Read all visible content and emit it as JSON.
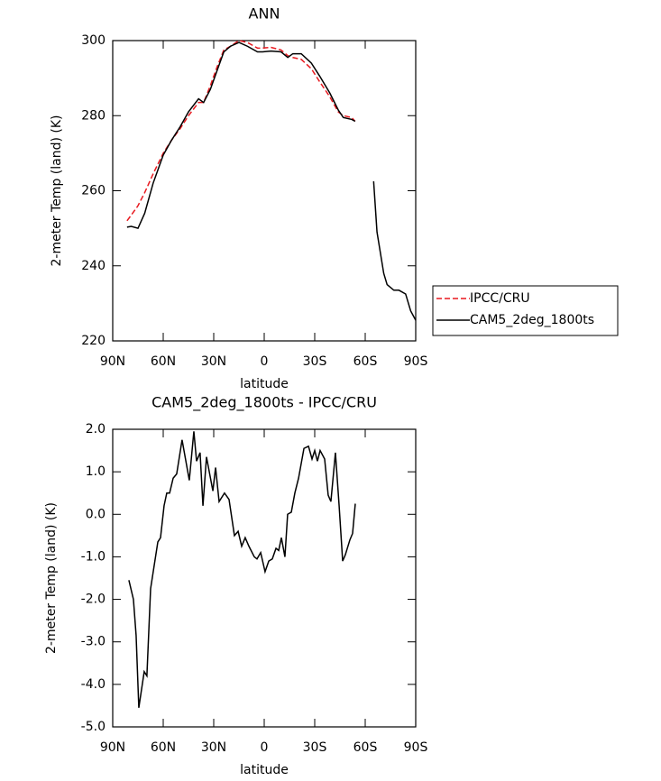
{
  "chart_data": [
    {
      "type": "line",
      "title": "ANN",
      "xlabel": "latitude",
      "ylabel": "2-meter Temp (land) (K)",
      "x": [
        81.5,
        79,
        75,
        71,
        66,
        60,
        55,
        50,
        45,
        39,
        36,
        32,
        28,
        24,
        20,
        15,
        10,
        4,
        1,
        -4,
        -10,
        -14,
        -17,
        -22,
        -28,
        -33,
        -39,
        -44,
        -47,
        -52,
        -54,
        -60,
        -65,
        -67,
        -71,
        -73,
        -77,
        -80,
        -84,
        -87,
        -90
      ],
      "series": [
        {
          "name": "IPCC/CRU",
          "color": "#e8191f",
          "dashed": true,
          "values": [
            252,
            253.5,
            256,
            259.5,
            264.5,
            270,
            273.5,
            276.5,
            280,
            283.5,
            283.5,
            288,
            293,
            297.5,
            298.5,
            300,
            299.5,
            298,
            298,
            298.2,
            297.5,
            296,
            295.5,
            295,
            292.5,
            289,
            285,
            281,
            280,
            279.5,
            278.5,
            null,
            null,
            null,
            null,
            null,
            null,
            null,
            null,
            null,
            null
          ]
        },
        {
          "name": "CAM5_2deg_1800ts",
          "color": "#000000",
          "dashed": false,
          "values": [
            250.3,
            250.5,
            250,
            254,
            262,
            269.5,
            273.5,
            277,
            281,
            284.5,
            283.5,
            287,
            292,
            297,
            298.5,
            299.5,
            298.5,
            297,
            297,
            297.2,
            297,
            295.5,
            296.5,
            296.5,
            294,
            290.5,
            286,
            281.5,
            279.5,
            279,
            278.5,
            null,
            262.5,
            249,
            238,
            235,
            233.5,
            233.5,
            232.5,
            228,
            225.5
          ]
        }
      ],
      "xlim": [
        90,
        -90
      ],
      "xticks": [
        {
          "value": 90,
          "label": "90N"
        },
        {
          "value": 60,
          "label": "60N"
        },
        {
          "value": 30,
          "label": "30N"
        },
        0,
        {
          "value": -30,
          "label": "30S"
        },
        {
          "value": -60,
          "label": "60S"
        },
        {
          "value": -90,
          "label": "90S"
        }
      ],
      "ylim": [
        220,
        300
      ],
      "yticks": [
        220,
        240,
        260,
        280,
        300
      ],
      "legend": "right"
    },
    {
      "type": "line",
      "title": "CAM5_2deg_1800ts - IPCC/CRU",
      "xlabel": "latitude",
      "ylabel": "2-meter Temp (land) (K)",
      "x": [
        80.4,
        77.7,
        76.1,
        74.5,
        71.3,
        69.7,
        67.5,
        63.2,
        61.6,
        59.5,
        57.9,
        56.2,
        54.1,
        52,
        48.8,
        44.5,
        41.8,
        40.2,
        38.1,
        36.4,
        34.3,
        30.5,
        28.9,
        26.8,
        23.6,
        20.9,
        17.7,
        15.5,
        13.4,
        11.3,
        9.1,
        5.9,
        4.3,
        2.1,
        -0.5,
        -2.7,
        -4.8,
        -7,
        -8.6,
        -10.2,
        -12.3,
        -13.9,
        -16.1,
        -18.2,
        -20.4,
        -23.6,
        -26.3,
        -28.4,
        -30,
        -31.6,
        -33.2,
        -35.9,
        -38,
        -39.6,
        -42.3,
        -44.5,
        -46.6,
        -48.2,
        -50.9,
        -52.5,
        -54.1
      ],
      "series": [
        {
          "color": "#000000",
          "dashed": false,
          "values": [
            -1.55,
            -2.0,
            -2.85,
            -4.55,
            -3.7,
            -3.8,
            -1.75,
            -0.65,
            -0.55,
            0.2,
            0.5,
            0.5,
            0.85,
            0.95,
            1.75,
            0.8,
            1.95,
            1.25,
            1.45,
            0.2,
            1.35,
            0.55,
            1.1,
            0.3,
            0.5,
            0.35,
            -0.5,
            -0.4,
            -0.75,
            -0.55,
            -0.75,
            -1.0,
            -1.05,
            -0.9,
            -1.35,
            -1.1,
            -1.05,
            -0.8,
            -0.85,
            -0.55,
            -1.0,
            0.0,
            0.05,
            0.5,
            0.85,
            1.55,
            1.6,
            1.3,
            1.5,
            1.25,
            1.5,
            1.3,
            0.45,
            0.3,
            1.45,
            0.2,
            -1.1,
            -0.95,
            -0.6,
            -0.45,
            0.25
          ]
        }
      ],
      "xlim": [
        90,
        -90
      ],
      "xticks": [
        {
          "value": 90,
          "label": "90N"
        },
        {
          "value": 60,
          "label": "60N"
        },
        {
          "value": 30,
          "label": "30N"
        },
        0,
        {
          "value": -30,
          "label": "30S"
        },
        {
          "value": -60,
          "label": "60S"
        },
        {
          "value": -90,
          "label": "90S"
        }
      ],
      "ylim": [
        -5,
        2
      ],
      "yticks": [
        {
          "value": -5,
          "label": "-5.0"
        },
        {
          "value": -4,
          "label": "-4.0"
        },
        {
          "value": -3,
          "label": "-3.0"
        },
        {
          "value": -2,
          "label": "-2.0"
        },
        {
          "value": -1,
          "label": "-1.0"
        },
        {
          "value": 0,
          "label": "0.0"
        },
        {
          "value": 1,
          "label": "1.0"
        },
        {
          "value": 2,
          "label": "2.0"
        }
      ]
    }
  ]
}
